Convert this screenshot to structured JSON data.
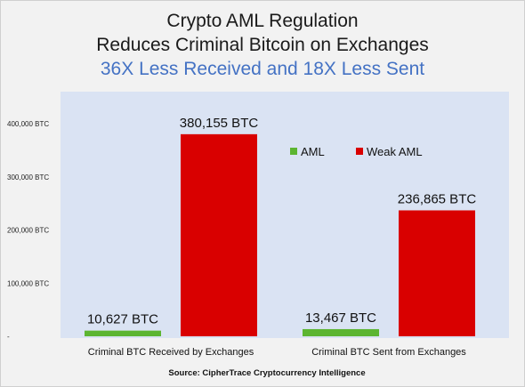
{
  "chart_data": {
    "type": "bar",
    "title": "Crypto AML Regulation",
    "title_line2": "Reduces Criminal Bitcoin on Exchanges",
    "subtitle": "36X Less Received and 18X Less Sent",
    "categories": [
      "Criminal BTC Received by Exchanges",
      "Criminal BTC Sent from Exchanges"
    ],
    "series": [
      {
        "name": "AML",
        "color": "#5cb531",
        "values": [
          10627,
          13467
        ],
        "labels": [
          "10,627 BTC",
          "13,467 BTC"
        ]
      },
      {
        "name": "Weak AML",
        "color": "#d90000",
        "values": [
          380155,
          236865
        ],
        "labels": [
          "380,155 BTC",
          "236,865 BTC"
        ]
      }
    ],
    "ylim": [
      0,
      450000
    ],
    "yticks": [
      {
        "value": 0,
        "label": "-"
      },
      {
        "value": 100000,
        "label": "100,000 BTC"
      },
      {
        "value": 200000,
        "label": "200,000 BTC"
      },
      {
        "value": 300000,
        "label": "300,000 BTC"
      },
      {
        "value": 400000,
        "label": "400,000 BTC"
      }
    ],
    "legend_position": "top-right",
    "grid": false,
    "source": "Source: CipherTrace Cryptocurrency Intelligence",
    "colors": {
      "subtitle": "#4472c4",
      "plot_background": "#dae3f3",
      "outer_background": "#f2f2f2"
    }
  }
}
